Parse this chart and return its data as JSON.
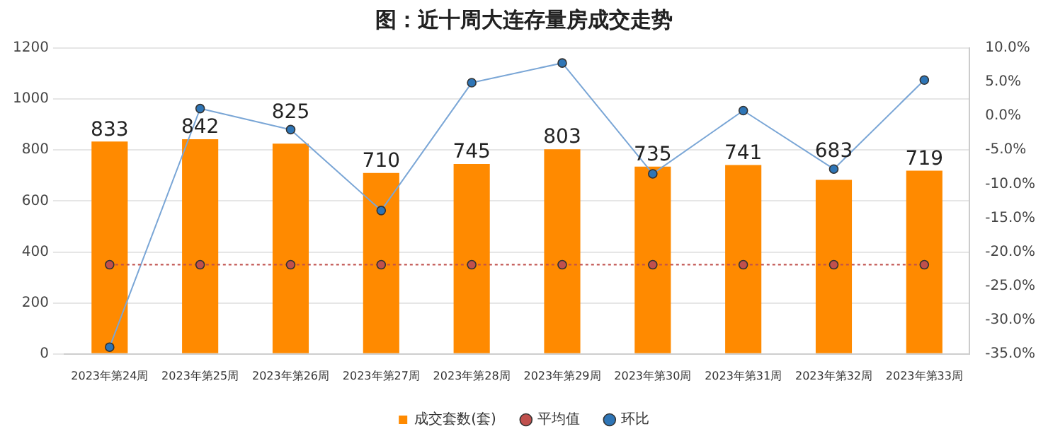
{
  "chart_data": {
    "type": "bar",
    "title": "图：近十周大连存量房成交走势",
    "categories": [
      "2023年第24周",
      "2023年第25周",
      "2023年第26周",
      "2023年第27周",
      "2023年第28周",
      "2023年第29周",
      "2023年第30周",
      "2023年第31周",
      "2023年第32周",
      "2023年第33周"
    ],
    "series": [
      {
        "name": "成交套数(套)",
        "color": "#ff8a00",
        "values": [
          833,
          842,
          825,
          710,
          745,
          803,
          735,
          741,
          683,
          719
        ],
        "value_labels": [
          "833",
          "842",
          "825",
          "710",
          "745",
          "803",
          "735",
          "741",
          "683",
          "719"
        ]
      },
      {
        "name": "平均值",
        "type": "line",
        "axis": "y",
        "color": "#c0504d",
        "line_style": "dotted",
        "values": [
          350,
          350,
          350,
          350,
          350,
          350,
          350,
          350,
          350,
          350
        ]
      },
      {
        "name": "环比",
        "type": "line",
        "axis": "y2",
        "color": "#7aa6d6",
        "line_style": "solid",
        "values": [
          -34,
          1.1,
          -2.0,
          -13.9,
          4.9,
          7.8,
          -8.5,
          0.8,
          -7.8,
          5.3
        ]
      }
    ],
    "ylim": [
      0,
      1200
    ],
    "yticks": [
      0,
      200,
      400,
      600,
      800,
      1000,
      1200
    ],
    "y2lim": [
      -35,
      10
    ],
    "y2ticks": [
      {
        "value": -35,
        "label": "-35.0%"
      },
      {
        "value": -30,
        "label": "-30.0%"
      },
      {
        "value": -25,
        "label": "-25.0%"
      },
      {
        "value": -20,
        "label": "-20.0%"
      },
      {
        "value": -15,
        "label": "-15.0%"
      },
      {
        "value": -10,
        "label": "-10.0%"
      },
      {
        "value": -5,
        "label": "-5.0%"
      },
      {
        "value": 0,
        "label": "0.0%"
      },
      {
        "value": 5,
        "label": "5.0%"
      },
      {
        "value": 10,
        "label": "10.0%"
      }
    ],
    "grid": "y",
    "legend": "bottom",
    "marker": "circle"
  }
}
